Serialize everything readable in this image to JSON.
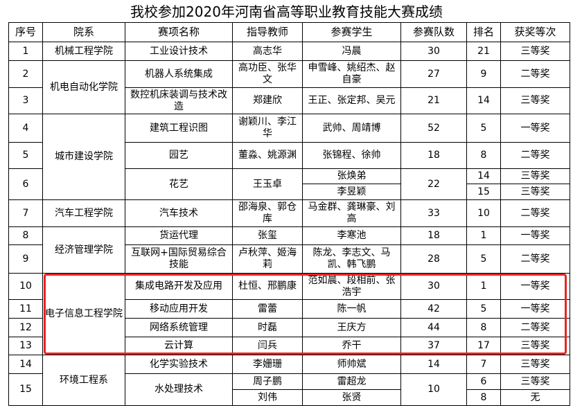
{
  "title": "我校参加2020年河南省高等职业教育技能大赛成绩",
  "headers": [
    "序号",
    "院系",
    "赛项名称",
    "指导教师",
    "参赛学生",
    "参赛队数",
    "排名",
    "获奖等次"
  ],
  "rows": [
    {
      "no": "1",
      "dept": "机械工程学院",
      "event": "工业设计技术",
      "teacher": "高志华",
      "students": "冯晨",
      "teams": "30",
      "rank": "21",
      "award": "三等奖"
    },
    {
      "no": "2",
      "dept": "机电自动化学院",
      "event": "机器人系统集成",
      "teacher": "高功臣、张华文",
      "students": "申雪峰、姚绍杰、赵自豪",
      "teams": "27",
      "rank": "9",
      "award": "二等奖"
    },
    {
      "no": "3",
      "event": "数控机床装调与技术改造",
      "teacher": "郑建欣",
      "students": "王正、张定邦、吴元",
      "teams": "21",
      "rank": "14",
      "award": "三等奖"
    },
    {
      "no": "4",
      "dept": "城市建设学院",
      "event": "建筑工程识图",
      "teacher": "谢颖川、李江华",
      "students": "武帅、周靖博",
      "teams": "52",
      "rank": "5",
      "award": "一等奖"
    },
    {
      "no": "5",
      "event": "园艺",
      "teacher": "董淼、姚源渊",
      "students": "张锦程、徐帅",
      "teams": "18",
      "rank": "8",
      "award": "二等奖"
    },
    {
      "no": "6",
      "event": "花艺",
      "teacher": "王玉卓",
      "students": [
        "张焕弟",
        "李昱颖"
      ],
      "teams": "22",
      "rank": [
        "14",
        "15"
      ],
      "award": [
        "三等奖",
        "三等奖"
      ]
    },
    {
      "no": "7",
      "dept": "汽车工程学院",
      "event": "汽车技术",
      "teacher": "邵海泉、郭仓库",
      "students": "马金群、龚琳豪、刘高",
      "teams": "33",
      "rank": "10",
      "award": "二等奖"
    },
    {
      "no": "8",
      "dept": "经济管理学院",
      "event": "货运代理",
      "teacher": "张玺",
      "students": "李寒池",
      "teams": "18",
      "rank": "1",
      "award": "一等奖"
    },
    {
      "no": "9",
      "event": "互联网+国际贸易综合技能",
      "teacher": "卢秋萍、姬海莉",
      "students": "陈龙、李志文、马凯、韩飞鹏",
      "teams": "28",
      "rank": "5",
      "award": "二等奖"
    },
    {
      "no": "10",
      "dept": "电子信息工程学院",
      "event": "集成电路开发及应用",
      "teacher": "杜恒、邢鹏康",
      "students": "范如晨、段相前、张浩宇",
      "teams": "30",
      "rank": "1",
      "award": "一等奖"
    },
    {
      "no": "11",
      "event": "移动应用开发",
      "teacher": "雷蕾",
      "students": "陈一帆",
      "teams": "42",
      "rank": "5",
      "award": "一等奖"
    },
    {
      "no": "12",
      "event": "网络系统管理",
      "teacher": "时磊",
      "students": "王庆方",
      "teams": "44",
      "rank": "8",
      "award": "二等奖"
    },
    {
      "no": "13",
      "event": "云计算",
      "teacher": "闫兵",
      "students": "乔干",
      "teams": "37",
      "rank": "17",
      "award": "三等奖"
    },
    {
      "no": "14",
      "dept": "环境工程系",
      "event": "化学实验技术",
      "teacher": "李姗珊",
      "students": "师帅斌",
      "teams": "14",
      "rank": "7",
      "award": "三等奖"
    },
    {
      "no": "15",
      "event": "水处理技术",
      "teacher": [
        "周子鹏",
        "刘伟"
      ],
      "students": [
        "雷超龙",
        "张贤"
      ],
      "teams": "10",
      "rank": [
        "6",
        "8"
      ],
      "award": [
        "三等奖",
        "无"
      ]
    }
  ],
  "highlight_color": "#e8231f"
}
